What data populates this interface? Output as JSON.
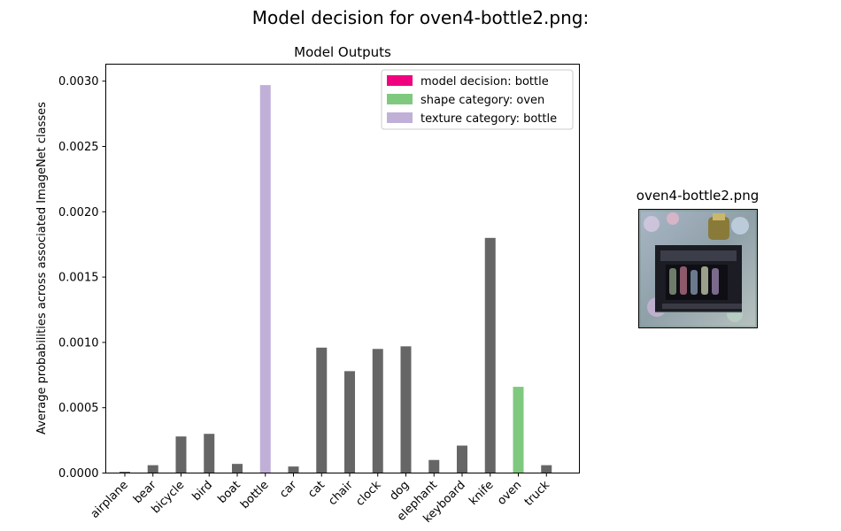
{
  "figure": {
    "suptitle": "Model decision for oven4-bottle2.png:"
  },
  "image_panel": {
    "title": "oven4-bottle2.png"
  },
  "chart_data": {
    "type": "bar",
    "title": "Model Outputs",
    "xlabel": "",
    "ylabel": "Average probabilities across associated ImageNet classes",
    "ylim": [
      0,
      0.00313
    ],
    "yticks": [
      "0.0000",
      "0.0005",
      "0.0010",
      "0.0015",
      "0.0020",
      "0.0025",
      "0.0030"
    ],
    "categories": [
      "airplane",
      "bear",
      "bicycle",
      "bird",
      "boat",
      "bottle",
      "car",
      "cat",
      "chair",
      "clock",
      "dog",
      "elephant",
      "keyboard",
      "knife",
      "oven",
      "truck"
    ],
    "values": [
      1e-05,
      6e-05,
      0.00028,
      0.0003,
      7e-05,
      0.00297,
      5e-05,
      0.00096,
      0.00078,
      0.00095,
      0.00097,
      0.0001,
      0.00021,
      0.0018,
      0.00066,
      6e-05
    ],
    "bar_colors": [
      "#666666",
      "#666666",
      "#666666",
      "#666666",
      "#666666",
      "#c0b0d8",
      "#666666",
      "#666666",
      "#666666",
      "#666666",
      "#666666",
      "#666666",
      "#666666",
      "#666666",
      "#7fc97f",
      "#666666"
    ],
    "legend_position": "top-right",
    "legend": [
      {
        "label": "model decision: bottle",
        "color": "#f0027f"
      },
      {
        "label": "shape category: oven",
        "color": "#7fc97f"
      },
      {
        "label": "texture category: bottle",
        "color": "#c0b0d8"
      }
    ],
    "grid": false
  }
}
